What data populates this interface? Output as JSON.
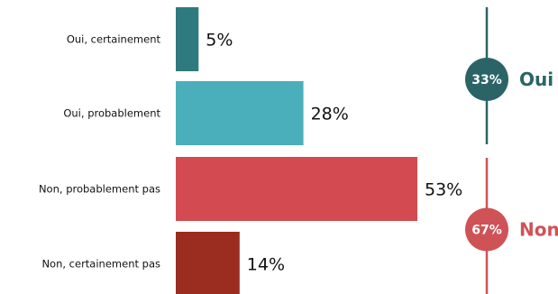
{
  "chart_data": {
    "type": "bar",
    "orientation": "horizontal",
    "categories": [
      "Oui, certainement",
      "Oui, probablement",
      "Non, probablement pas",
      "Non, certainement pas"
    ],
    "values": [
      5,
      28,
      53,
      14
    ],
    "value_labels": [
      "5%",
      "28%",
      "53%",
      "14%"
    ],
    "bar_colors": [
      "#2f7a7f",
      "#4aafba",
      "#d34b50",
      "#9a2c20"
    ],
    "xlim": [
      0,
      53
    ],
    "groups": [
      {
        "name": "Oui",
        "percent_label": "33%",
        "value": 33,
        "color": "#2b6466",
        "members": [
          0,
          1
        ]
      },
      {
        "name": "Non",
        "percent_label": "67%",
        "value": 67,
        "color": "#cf5256",
        "members": [
          2,
          3
        ]
      }
    ]
  }
}
